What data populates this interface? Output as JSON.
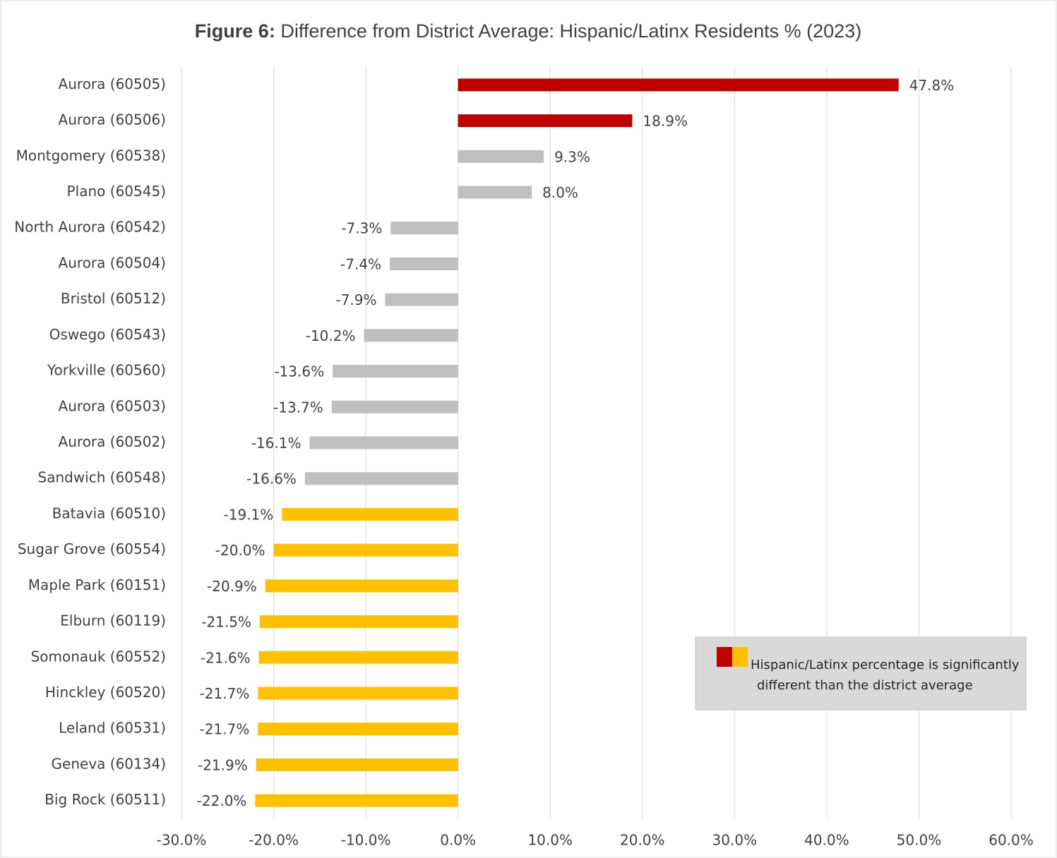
{
  "chart_data": {
    "type": "hbar",
    "title_prefix": "Figure 6:",
    "title": "Difference from District Average: Hispanic/Latinx Residents % (2023)",
    "categories": [
      "Aurora (60505)",
      "Aurora (60506)",
      "Montgomery (60538)",
      "Plano (60545)",
      "North Aurora (60542)",
      "Aurora (60504)",
      "Bristol (60512)",
      "Oswego (60543)",
      "Yorkville (60560)",
      "Aurora (60503)",
      "Aurora (60502)",
      "Sandwich (60548)",
      "Batavia (60510)",
      "Sugar Grove (60554)",
      "Maple Park (60151)",
      "Elburn (60119)",
      "Somonauk (60552)",
      "Hinckley (60520)",
      "Leland (60531)",
      "Geneva (60134)",
      "Big Rock (60511)"
    ],
    "values": [
      47.8,
      18.9,
      9.3,
      8.0,
      -7.3,
      -7.4,
      -7.9,
      -10.2,
      -13.6,
      -13.7,
      -16.1,
      -16.6,
      -19.1,
      -20.0,
      -20.9,
      -21.5,
      -21.6,
      -21.7,
      -21.7,
      -21.9,
      -22.0
    ],
    "value_labels": [
      "47.8%",
      "18.9%",
      "9.3%",
      "8.0%",
      "-7.3%",
      "-7.4%",
      "-7.9%",
      "-10.2%",
      "-13.6%",
      "-13.7%",
      "-16.1%",
      "-16.6%",
      "-19.1%",
      "-20.0%",
      "-20.9%",
      "-21.5%",
      "-21.6%",
      "-21.7%",
      "-21.7%",
      "-21.9%",
      "-22.0%"
    ],
    "colors": [
      "#c00000",
      "#c00000",
      "#bfbfbf",
      "#bfbfbf",
      "#bfbfbf",
      "#bfbfbf",
      "#bfbfbf",
      "#bfbfbf",
      "#bfbfbf",
      "#bfbfbf",
      "#bfbfbf",
      "#bfbfbf",
      "#ffc000",
      "#ffc000",
      "#ffc000",
      "#ffc000",
      "#ffc000",
      "#ffc000",
      "#ffc000",
      "#ffc000",
      "#ffc000"
    ],
    "xlim": [
      -30,
      60
    ],
    "xticks": [
      {
        "value": -30,
        "label": "-30.0%"
      },
      {
        "value": -20,
        "label": "-20.0%"
      },
      {
        "value": -10,
        "label": "-10.0%"
      },
      {
        "value": 0,
        "label": "0.0%"
      },
      {
        "value": 10,
        "label": "10.0%"
      },
      {
        "value": 20,
        "label": "20.0%"
      },
      {
        "value": 30,
        "label": "30.0%"
      },
      {
        "value": 40,
        "label": "40.0%"
      },
      {
        "value": 50,
        "label": "50.0%"
      },
      {
        "value": 60,
        "label": "60.0%"
      }
    ],
    "grid": true,
    "legend": {
      "lines": [
        "Hispanic/Latinx percentage is significantly",
        "different than the district average"
      ],
      "colors": [
        "#c00000",
        "#ffc000"
      ]
    }
  }
}
